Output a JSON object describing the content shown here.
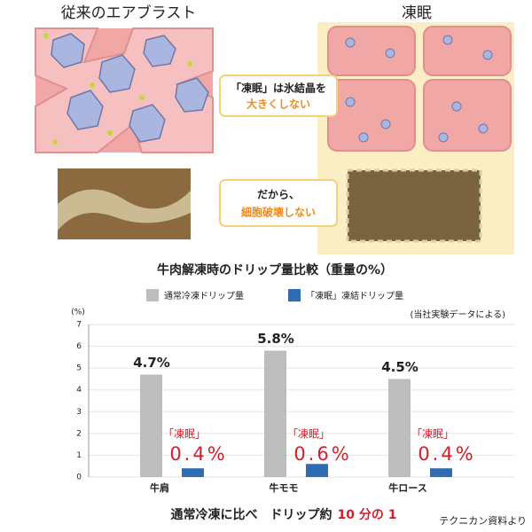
{
  "header": {
    "left_title": "従来のエアブラスト",
    "right_title": "凍眠",
    "message1": [
      "「凍眠」は氷結晶を",
      "大きくしない"
    ],
    "message2": [
      "だから、",
      "細胞破壊しない"
    ]
  },
  "chart_data": {
    "type": "bar",
    "title": "牛肉解凍時のドリップ量比較（重量の%）",
    "categories": [
      "牛肩",
      "牛モモ",
      "牛ロース"
    ],
    "series": [
      {
        "name": "通常冷凍ドリップ量",
        "color": "#bdbdbd",
        "values": [
          4.7,
          5.8,
          4.5
        ],
        "value_labels": [
          "4.7%",
          "5.8%",
          "4.5%"
        ]
      },
      {
        "name": "「凍眠」凍結ドリップ量",
        "color": "#2e6db4",
        "values": [
          0.4,
          0.6,
          0.4
        ],
        "value_labels": [
          "0.4%",
          "0.6%",
          "0.4%"
        ]
      }
    ],
    "ylim": [
      0,
      7
    ],
    "yticks": [
      0,
      1,
      2,
      3,
      4,
      5,
      6,
      7
    ],
    "grid": true,
    "y_unit": "(%)",
    "note": "(当社実験データによる)",
    "tag": "「凍眠」",
    "caption": [
      "通常冷凍に比べ　ドリップ約",
      "10 分の 1"
    ],
    "source": "テクニカン資料より"
  }
}
